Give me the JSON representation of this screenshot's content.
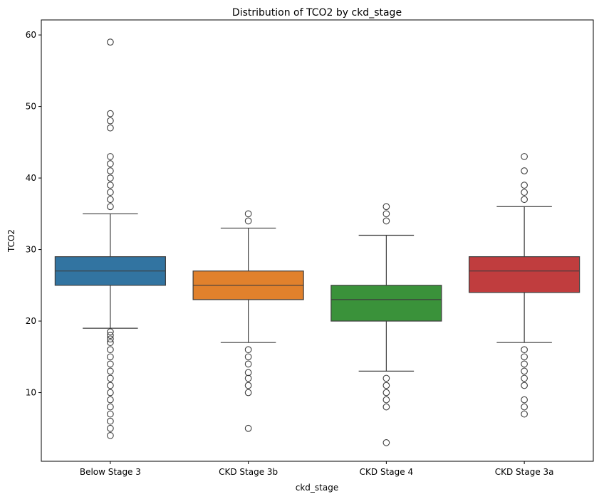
{
  "chart_data": {
    "type": "box",
    "title": "Distribution of TCO2 by ckd_stage",
    "xlabel": "ckd_stage",
    "ylabel": "TCO2",
    "ylim": [
      0.4,
      62.1
    ],
    "yticks": [
      10,
      20,
      30,
      40,
      50,
      60
    ],
    "grid": false,
    "categories": [
      "Below Stage 3",
      "CKD Stage 3b",
      "CKD Stage 4",
      "CKD Stage 3a"
    ],
    "colors": [
      "#3274a1",
      "#e1812c",
      "#3a923a",
      "#c03d3e"
    ],
    "boxes": [
      {
        "category": "Below Stage 3",
        "whisker_low": 19,
        "q1": 25,
        "median": 27,
        "q3": 29,
        "whisker_high": 35,
        "outliers": [
          4,
          5,
          6,
          7,
          8,
          9,
          10,
          11,
          12,
          13,
          14,
          15,
          16,
          17,
          17.5,
          18,
          18.5,
          36,
          37,
          38,
          39,
          40,
          41,
          42,
          43,
          47,
          48,
          49,
          59
        ]
      },
      {
        "category": "CKD Stage 3b",
        "whisker_low": 17,
        "q1": 23,
        "median": 25,
        "q3": 27,
        "whisker_high": 33,
        "outliers": [
          5,
          10,
          11,
          12,
          12.8,
          14,
          15,
          16,
          34,
          35
        ]
      },
      {
        "category": "CKD Stage 4",
        "whisker_low": 13,
        "q1": 20,
        "median": 23,
        "q3": 25,
        "whisker_high": 32,
        "outliers": [
          3,
          8,
          9,
          10,
          11,
          12,
          34,
          35,
          36
        ]
      },
      {
        "category": "CKD Stage 3a",
        "whisker_low": 17,
        "q1": 24,
        "median": 27,
        "q3": 29,
        "whisker_high": 36,
        "outliers": [
          7,
          8,
          9,
          11,
          12,
          13,
          14,
          15,
          16,
          37,
          38,
          39,
          41,
          43
        ]
      }
    ]
  }
}
